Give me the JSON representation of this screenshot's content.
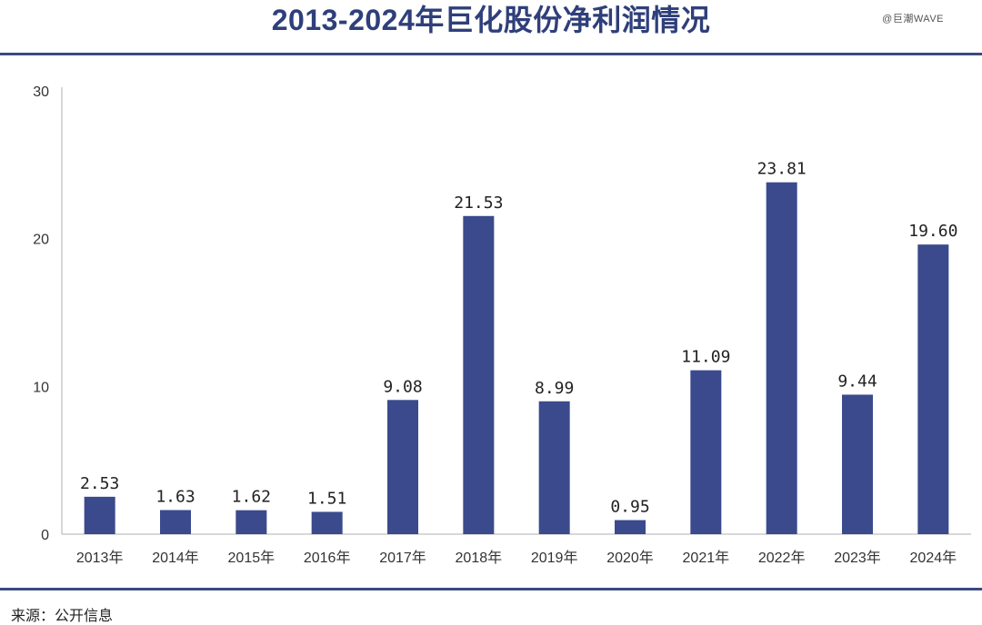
{
  "header": {
    "title": "2013-2024年巨化股份净利润情况",
    "watermark": "@巨潮WAVE"
  },
  "footer": {
    "source": "来源：公开信息"
  },
  "colors": {
    "bar": "#3a4a8c",
    "accent": "#2f3f7a",
    "axis": "#b0b0b0"
  },
  "chart_data": {
    "type": "bar",
    "categories": [
      "2013年",
      "2014年",
      "2015年",
      "2016年",
      "2017年",
      "2018年",
      "2019年",
      "2020年",
      "2021年",
      "2022年",
      "2023年",
      "2024年"
    ],
    "values": [
      2.53,
      1.63,
      1.62,
      1.51,
      9.08,
      21.53,
      8.99,
      0.95,
      11.09,
      23.81,
      9.44,
      19.6
    ],
    "value_labels": [
      "2.53",
      "1.63",
      "1.62",
      "1.51",
      "9.08",
      "21.53",
      "8.99",
      "0.95",
      "11.09",
      "23.81",
      "9.44",
      "19.60"
    ],
    "title": "2013-2024年巨化股份净利润情况",
    "xlabel": "",
    "ylabel": "",
    "ylim": [
      0,
      30
    ],
    "yticks": [
      0,
      10,
      20,
      30
    ],
    "grid": false,
    "legend": "none"
  }
}
